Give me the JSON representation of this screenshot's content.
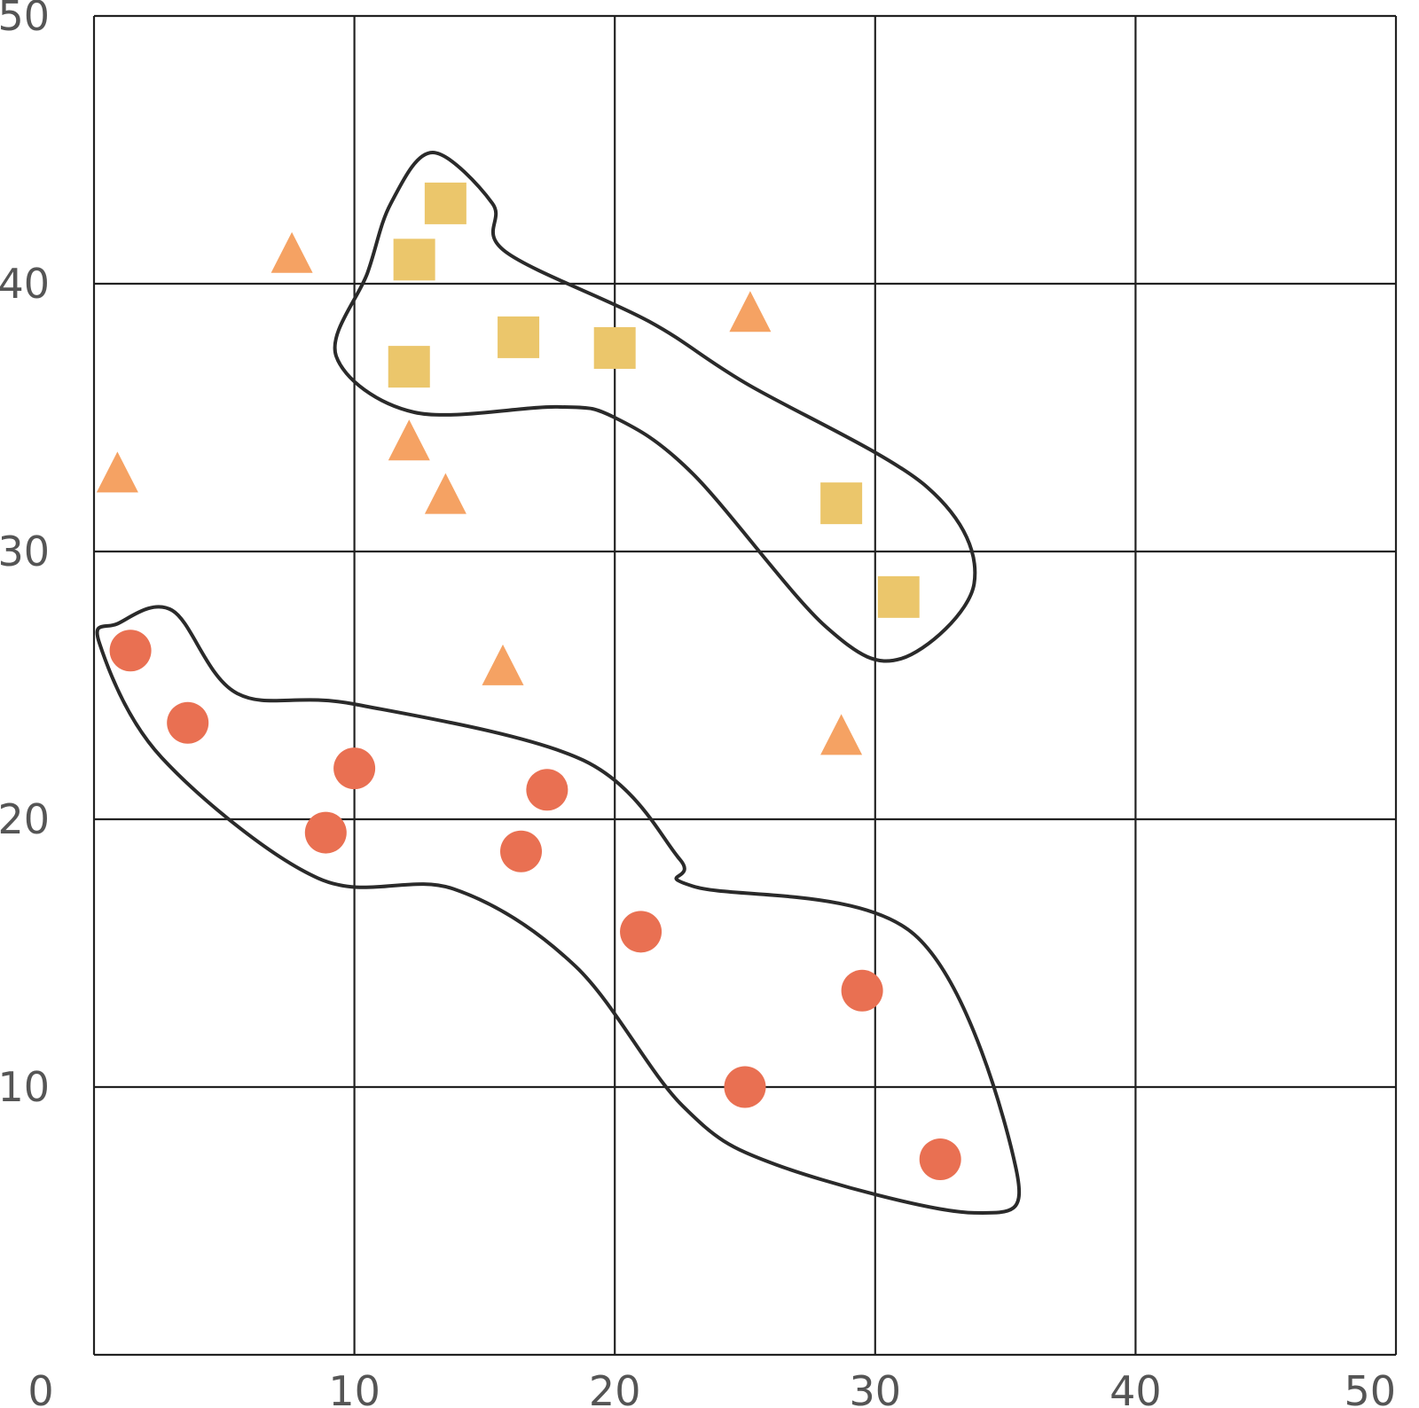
{
  "chart_data": {
    "type": "scatter",
    "title": "",
    "xlabel": "",
    "ylabel": "",
    "xlim": [
      0,
      50
    ],
    "ylim": [
      0,
      50
    ],
    "x_ticks": [
      0,
      10,
      20,
      30,
      40,
      50
    ],
    "y_ticks": [
      0,
      10,
      20,
      30,
      40,
      50
    ],
    "grid": true,
    "series": [
      {
        "marker": "circle",
        "color": "#E97052",
        "points": [
          [
            1.4,
            26.3
          ],
          [
            3.6,
            23.6
          ],
          [
            10.0,
            21.9
          ],
          [
            8.9,
            19.5
          ],
          [
            17.4,
            21.1
          ],
          [
            16.4,
            18.8
          ],
          [
            21.0,
            15.8
          ],
          [
            29.5,
            13.6
          ],
          [
            25.0,
            10.0
          ],
          [
            32.5,
            7.3
          ]
        ]
      },
      {
        "marker": "square",
        "color": "#EBC66B",
        "points": [
          [
            13.5,
            43.0
          ],
          [
            12.3,
            40.9
          ],
          [
            12.1,
            36.9
          ],
          [
            16.3,
            38.0
          ],
          [
            20.0,
            37.6
          ],
          [
            28.7,
            31.8
          ],
          [
            30.9,
            28.3
          ]
        ]
      },
      {
        "marker": "triangle",
        "color": "#F5A263",
        "points": [
          [
            7.6,
            41.0
          ],
          [
            0.9,
            32.8
          ],
          [
            12.1,
            34.0
          ],
          [
            13.5,
            32.0
          ],
          [
            25.2,
            38.8
          ],
          [
            15.7,
            25.6
          ],
          [
            28.7,
            23.0
          ]
        ]
      }
    ],
    "outlines": [
      {
        "encloses": "square",
        "path_points": [
          [
            13.0,
            44.9
          ],
          [
            11.4,
            43.0
          ],
          [
            10.5,
            40.4
          ],
          [
            9.3,
            37.3
          ],
          [
            12.3,
            35.2
          ],
          [
            17.8,
            35.4
          ],
          [
            20.0,
            35.0
          ],
          [
            23.0,
            32.9
          ],
          [
            28.1,
            27.2
          ],
          [
            31.0,
            26.0
          ],
          [
            33.8,
            28.8
          ],
          [
            32.0,
            32.4
          ],
          [
            25.0,
            36.3
          ],
          [
            21.3,
            38.6
          ],
          [
            15.8,
            41.2
          ],
          [
            15.3,
            43.0
          ]
        ]
      },
      {
        "encloses": "circle",
        "path_points": [
          [
            3.0,
            27.8
          ],
          [
            0.9,
            27.3
          ],
          [
            0.2,
            26.6
          ],
          [
            2.6,
            22.3
          ],
          [
            8.6,
            17.8
          ],
          [
            13.8,
            17.4
          ],
          [
            18.5,
            14.5
          ],
          [
            22.6,
            9.3
          ],
          [
            26.2,
            7.1
          ],
          [
            33.8,
            5.3
          ],
          [
            35.4,
            7.0
          ],
          [
            31.5,
            15.7
          ],
          [
            23.0,
            17.5
          ],
          [
            22.5,
            18.5
          ],
          [
            18.8,
            22.2
          ],
          [
            10.0,
            24.3
          ],
          [
            5.5,
            24.7
          ]
        ]
      }
    ]
  }
}
